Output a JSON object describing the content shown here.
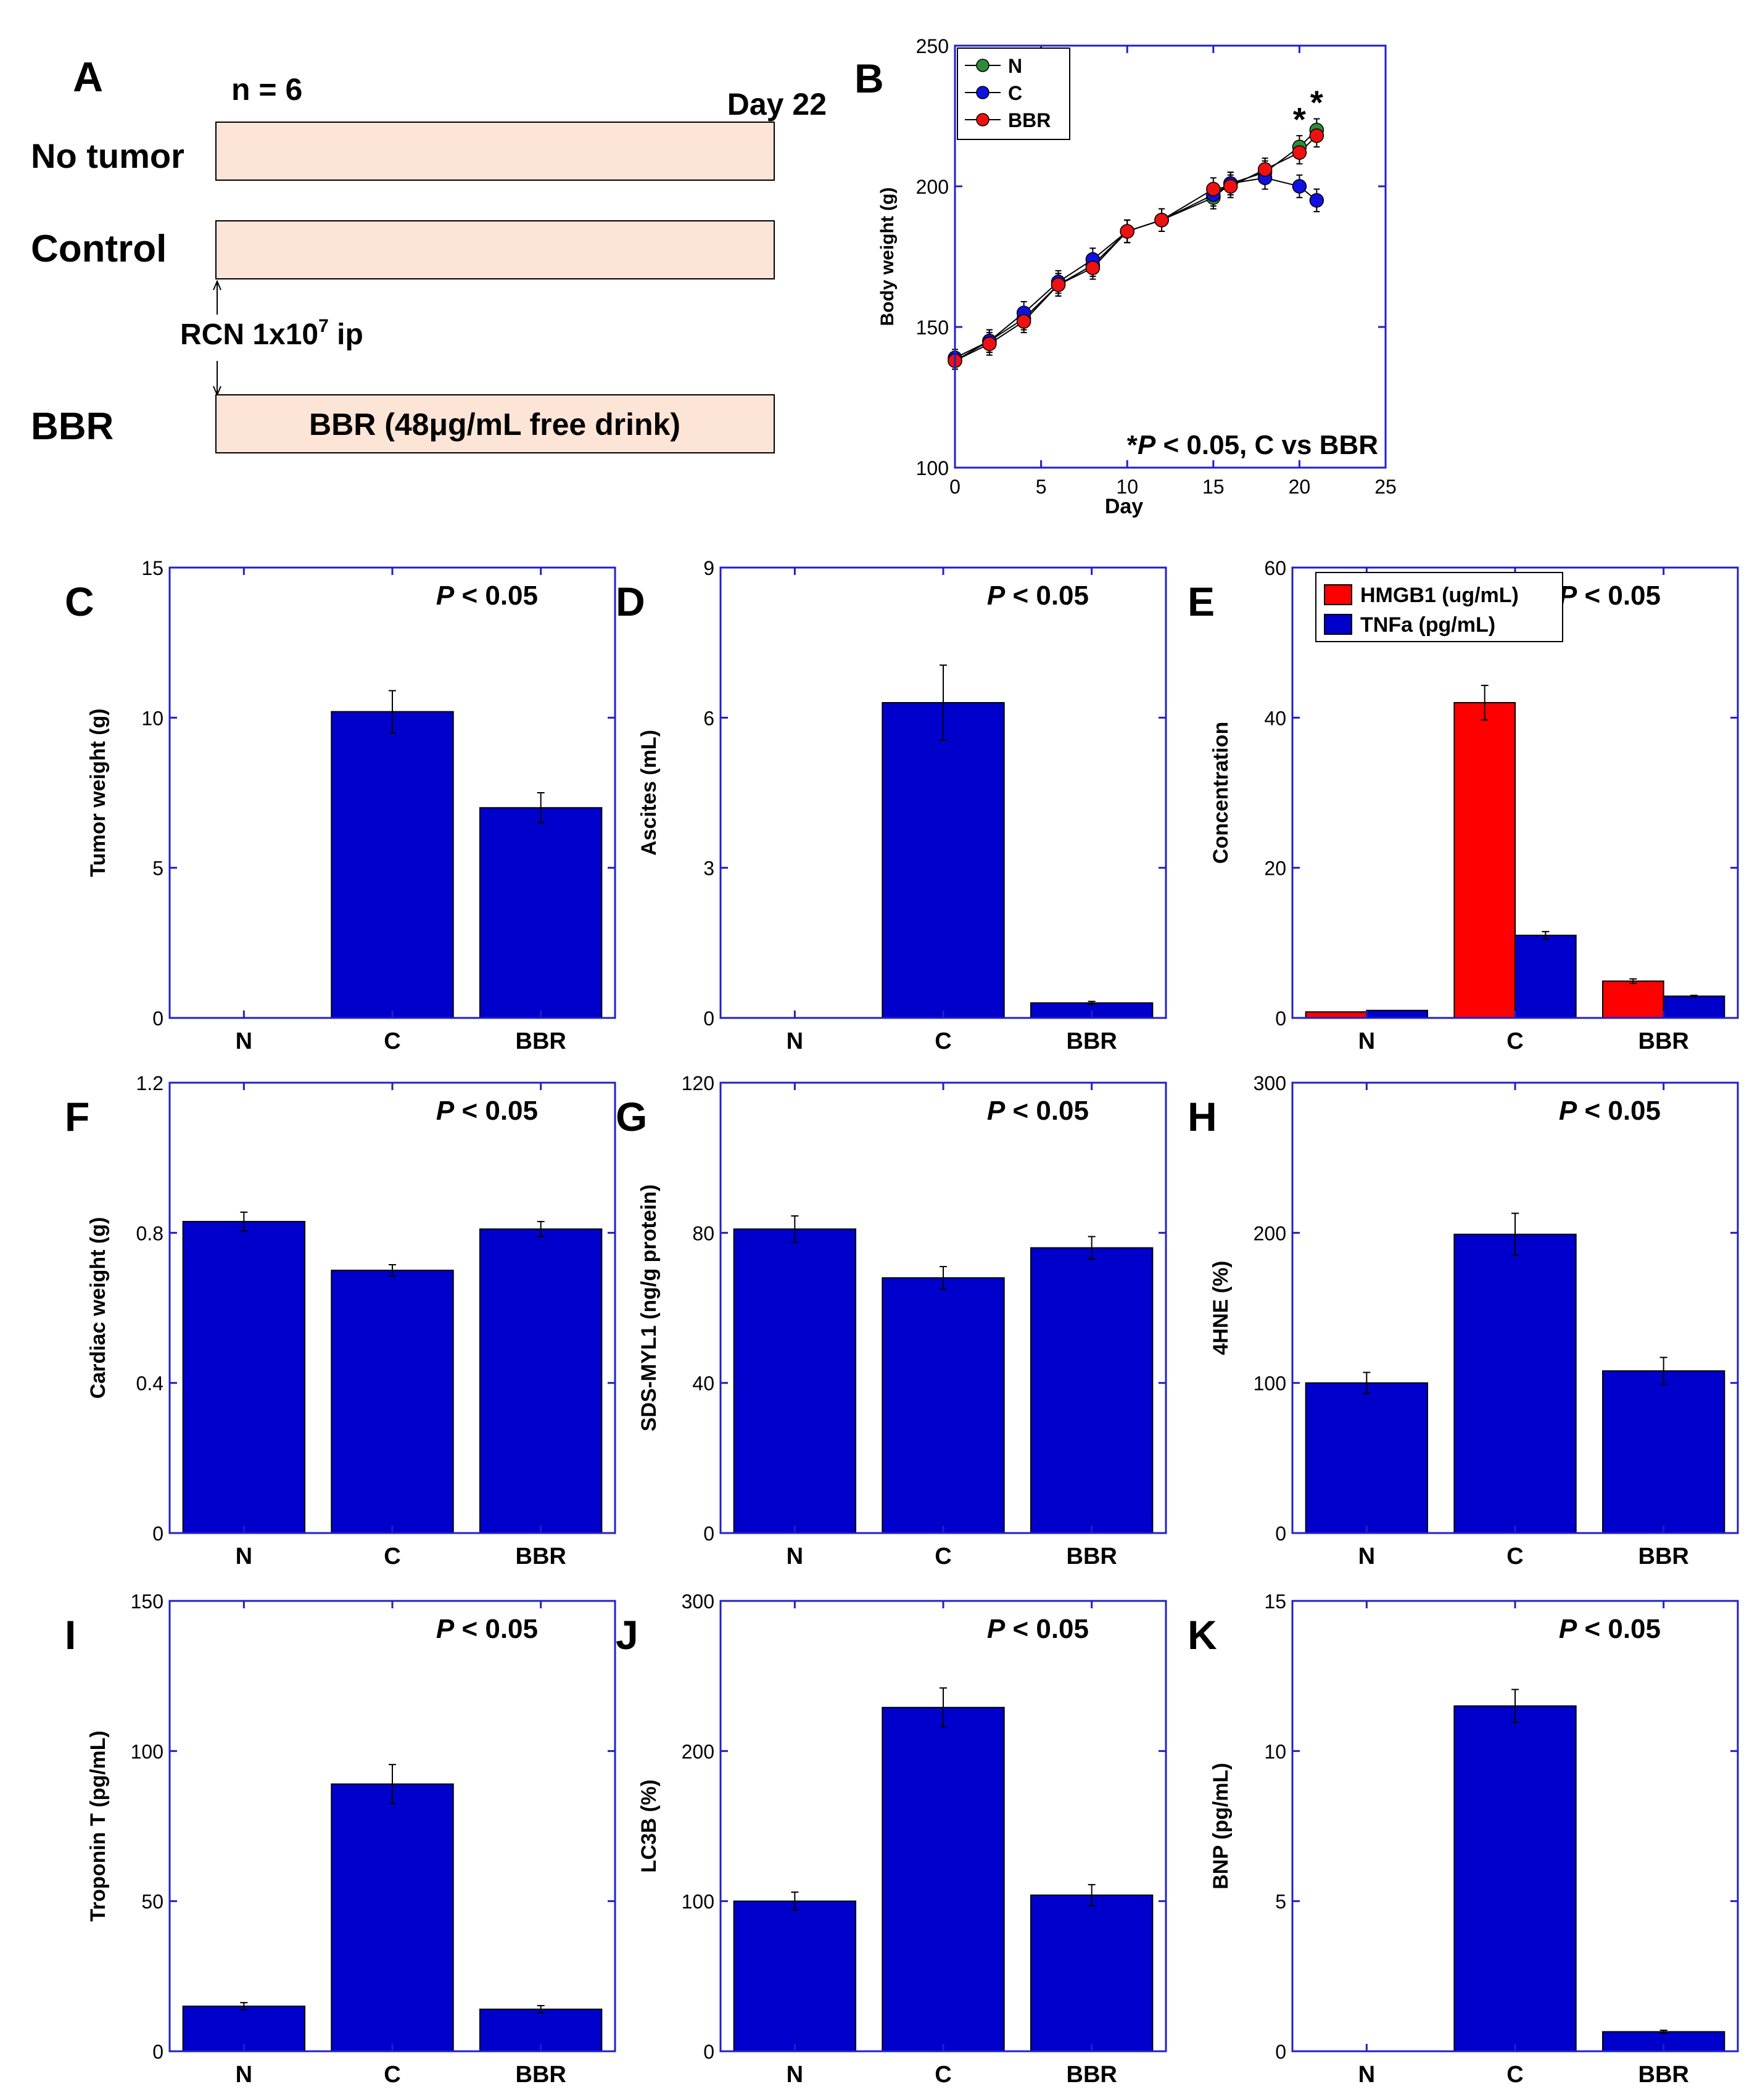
{
  "colors": {
    "bar": "#0000CC",
    "hmgb1": "#FF0000",
    "tnfa": "#0000CC",
    "axis": "#2020C8",
    "series_N": "#2E8B3C",
    "series_C": "#1010E0",
    "series_BBR": "#EE1111",
    "schema_box": "#FCE4D6"
  },
  "panel_a": {
    "letter": "A",
    "n_label": "n = 6",
    "day_label": "Day 22",
    "rows": [
      {
        "label": "No tumor",
        "box_text": ""
      },
      {
        "label": "Control",
        "box_text": ""
      },
      {
        "label": "BBR",
        "box_text": "BBR (48μg/mL free drink)"
      }
    ],
    "injection_main": "RCN 1x10",
    "injection_sup": "7",
    "injection_tail": " ip"
  },
  "chart_data": [
    {
      "panel": "B",
      "type": "line",
      "xlabel": "Day",
      "ylabel": "Body weight (g)",
      "xlim": [
        0,
        25
      ],
      "ylim": [
        100,
        250
      ],
      "xticks": [
        0,
        5,
        10,
        15,
        20,
        25
      ],
      "yticks": [
        100,
        150,
        200,
        250
      ],
      "legend": [
        "N",
        "C",
        "BBR"
      ],
      "annotation_prefix": "*",
      "annotation_p": "P",
      "annotation_suffix": " < 0.05, C vs BBR",
      "star": "*",
      "x": [
        0,
        2,
        4,
        6,
        8,
        10,
        12,
        15,
        16,
        18,
        20,
        21
      ],
      "series": [
        {
          "name": "N",
          "values": [
            138,
            145,
            153,
            165,
            172,
            184,
            188,
            196,
            201,
            205,
            214,
            220
          ],
          "err": [
            3,
            4,
            4,
            4,
            4,
            4,
            4,
            4,
            4,
            4,
            4,
            4
          ]
        },
        {
          "name": "C",
          "values": [
            139,
            145,
            155,
            166,
            174,
            184,
            188,
            197,
            201,
            203,
            200,
            195
          ],
          "err": [
            3,
            4,
            4,
            4,
            4,
            4,
            4,
            4,
            4,
            4,
            4,
            4
          ]
        },
        {
          "name": "BBR",
          "values": [
            138,
            144,
            152,
            165,
            171,
            184,
            188,
            199,
            200,
            206,
            212,
            218
          ],
          "err": [
            3,
            4,
            4,
            4,
            4,
            4,
            4,
            4,
            4,
            4,
            4,
            4
          ]
        }
      ]
    },
    {
      "panel": "C",
      "type": "bar",
      "categories": [
        "N",
        "C",
        "BBR"
      ],
      "values": [
        0,
        10.2,
        7.0
      ],
      "err": [
        0,
        0.7,
        0.5
      ],
      "ylabel": "Tumor weight (g)",
      "ylim": [
        0,
        15
      ],
      "yticks": [
        0,
        5,
        10,
        15
      ],
      "p_italic": "P",
      "p_rest": " < 0.05"
    },
    {
      "panel": "D",
      "type": "bar",
      "categories": [
        "N",
        "C",
        "BBR"
      ],
      "values": [
        0,
        6.3,
        0.3
      ],
      "err": [
        0,
        0.75,
        0.03
      ],
      "ylabel": "Ascites (mL)",
      "ylim": [
        0,
        9
      ],
      "yticks": [
        0,
        3,
        6,
        9
      ],
      "p_italic": "P",
      "p_rest": " < 0.05"
    },
    {
      "panel": "E",
      "type": "bar",
      "categories": [
        "N",
        "C",
        "BBR"
      ],
      "series": [
        {
          "name": "HMGB1 (ug/mL)",
          "values": [
            0.8,
            42,
            4.9
          ],
          "err": [
            0,
            2.3,
            0.3
          ]
        },
        {
          "name": "TNFa (pg/mL)",
          "values": [
            1.0,
            11,
            2.9
          ],
          "err": [
            0,
            0.5,
            0.1
          ]
        }
      ],
      "ylabel": "Concentration",
      "ylim": [
        0,
        60
      ],
      "yticks": [
        0,
        20,
        40,
        60
      ],
      "p_italic": "P",
      "p_rest": " < 0.05"
    },
    {
      "panel": "F",
      "type": "bar",
      "categories": [
        "N",
        "C",
        "BBR"
      ],
      "values": [
        0.83,
        0.7,
        0.81
      ],
      "err": [
        0.025,
        0.015,
        0.02
      ],
      "ylabel": "Cardiac weight (g)",
      "ylim": [
        0,
        1.2
      ],
      "yticks": [
        0,
        0.4,
        0.8,
        1.2
      ],
      "p_italic": "P",
      "p_rest": " < 0.05"
    },
    {
      "panel": "G",
      "type": "bar",
      "categories": [
        "N",
        "C",
        "BBR"
      ],
      "values": [
        81,
        68,
        76
      ],
      "err": [
        3.5,
        3,
        3
      ],
      "ylabel": "SDS-MYL1 (ng/g protein)",
      "ylim": [
        0,
        120
      ],
      "yticks": [
        0,
        40,
        80,
        120
      ],
      "p_italic": "P",
      "p_rest": " < 0.05"
    },
    {
      "panel": "H",
      "type": "bar",
      "categories": [
        "N",
        "C",
        "BBR"
      ],
      "values": [
        100,
        199,
        108
      ],
      "err": [
        7,
        14,
        9
      ],
      "ylabel": "4HNE (%)",
      "ylim": [
        0,
        300
      ],
      "yticks": [
        0,
        100,
        200,
        300
      ],
      "p_italic": "P",
      "p_rest": " < 0.05"
    },
    {
      "panel": "I",
      "type": "bar",
      "categories": [
        "N",
        "C",
        "BBR"
      ],
      "values": [
        15,
        89,
        14
      ],
      "err": [
        1.2,
        6.5,
        1.2
      ],
      "ylabel": "Troponin T (pg/mL)",
      "ylim": [
        0,
        150
      ],
      "yticks": [
        0,
        50,
        100,
        150
      ],
      "p_italic": "P",
      "p_rest": " < 0.05"
    },
    {
      "panel": "J",
      "type": "bar",
      "categories": [
        "N",
        "C",
        "BBR"
      ],
      "values": [
        100,
        229,
        104
      ],
      "err": [
        6,
        13,
        7
      ],
      "ylabel": "LC3B (%)",
      "ylim": [
        0,
        300
      ],
      "yticks": [
        0,
        100,
        200,
        300
      ],
      "p_italic": "P",
      "p_rest": " < 0.05"
    },
    {
      "panel": "K",
      "type": "bar",
      "categories": [
        "N",
        "C",
        "BBR"
      ],
      "values": [
        0,
        11.5,
        0.65
      ],
      "err": [
        0,
        0.55,
        0.05
      ],
      "ylabel": "BNP (pg/mL)",
      "ylim": [
        0,
        15
      ],
      "yticks": [
        0,
        5,
        10,
        15
      ],
      "p_italic": "P",
      "p_rest": " < 0.05"
    }
  ]
}
